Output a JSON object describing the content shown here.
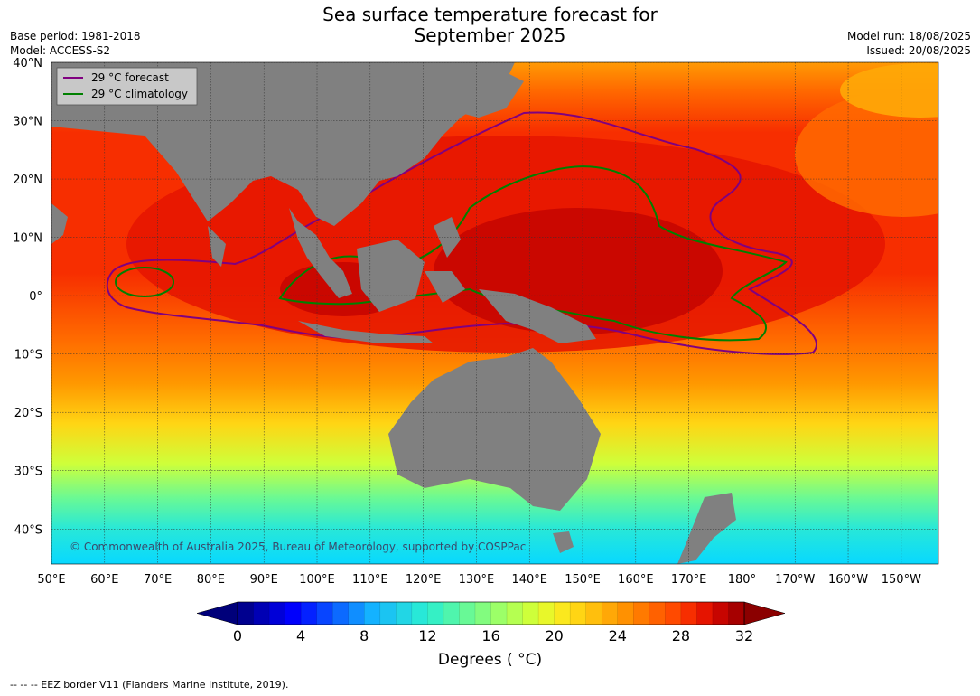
{
  "header": {
    "title_line1": "Sea surface temperature forecast for",
    "title_line2": "September 2025",
    "base_period": "Base period: 1981-2018",
    "model": "Model: ACCESS-S2",
    "model_run": "Model run: 18/08/2025",
    "issued": "Issued: 20/08/2025"
  },
  "map": {
    "lat_labels": [
      "40°N",
      "30°N",
      "20°N",
      "10°N",
      "0°",
      "10°S",
      "20°S",
      "30°S",
      "40°S"
    ],
    "lat_values": [
      40,
      30,
      20,
      10,
      0,
      -10,
      -20,
      -30,
      -40
    ],
    "lon_labels": [
      "50°E",
      "60°E",
      "70°E",
      "80°E",
      "90°E",
      "100°E",
      "110°E",
      "120°E",
      "130°E",
      "140°E",
      "150°E",
      "160°E",
      "170°E",
      "180°",
      "170°W",
      "160°W",
      "150°W"
    ],
    "lon_values": [
      50,
      60,
      70,
      80,
      90,
      100,
      110,
      120,
      130,
      140,
      150,
      160,
      170,
      180,
      190,
      200,
      210
    ],
    "extent": {
      "lon_min": 50,
      "lon_max": 217,
      "lat_min": -46,
      "lat_max": 40
    },
    "land_color": "#808080",
    "copyright": "© Commonwealth of Australia 2025, Bureau of Meteorology, supported by COSPPac"
  },
  "legend": {
    "items": [
      {
        "label": "29 °C  forecast",
        "color": "#800080"
      },
      {
        "label": "29 °C  climatology",
        "color": "#008000"
      }
    ]
  },
  "colorbar": {
    "ticks": [
      "0",
      "4",
      "8",
      "12",
      "16",
      "20",
      "24",
      "28",
      "32"
    ],
    "tick_values": [
      0,
      4,
      8,
      12,
      16,
      20,
      24,
      28,
      32
    ],
    "min": 0,
    "max": 32,
    "step": 1,
    "units": "Degrees ( °C)",
    "colors": [
      "#00008f",
      "#0000b4",
      "#0000d8",
      "#0000fc",
      "#0421ff",
      "#0845ff",
      "#0c6aff",
      "#108eff",
      "#14b2ff",
      "#1bc4f2",
      "#22d6e5",
      "#28e8d8",
      "#35f0c5",
      "#4ff5ad",
      "#68f996",
      "#82fc7f",
      "#9cff68",
      "#b5ff51",
      "#ceff3a",
      "#e8f72a",
      "#fbe81e",
      "#ffd514",
      "#ffbf0d",
      "#ffa807",
      "#ff9101",
      "#ff7a00",
      "#ff6100",
      "#ff4a00",
      "#f72e00",
      "#e51400",
      "#c70500",
      "#a60000"
    ]
  },
  "footnote": "--  --  -- EEZ border V11 (Flanders Marine Institute, 2019)."
}
